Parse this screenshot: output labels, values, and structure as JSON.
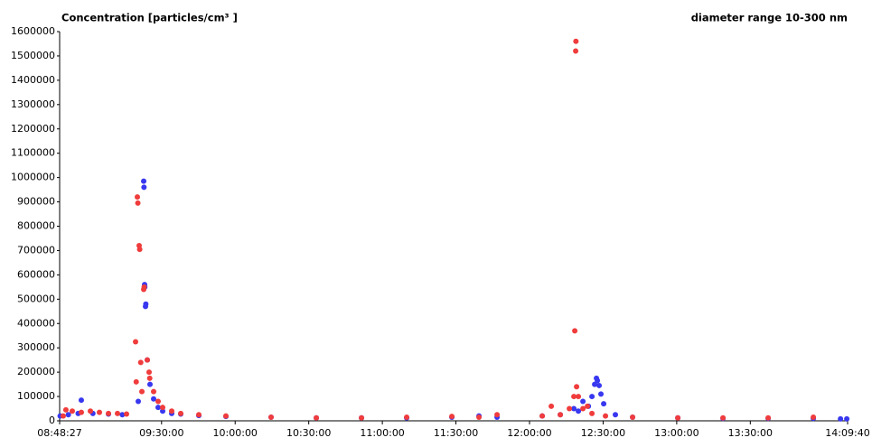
{
  "chart_data": {
    "type": "scatter",
    "title": "Concentration [particles/cm³ ]",
    "subtitle": "diameter range 10-300 nm",
    "xlim": [
      "08:48:27",
      "14:09:40"
    ],
    "xticks": [
      "08:48:27",
      "09:30:00",
      "10:00:00",
      "10:30:00",
      "11:00:00",
      "11:30:00",
      "12:00:00",
      "12:30:00",
      "13:00:00",
      "13:30:00",
      "14:09:40"
    ],
    "ylim": [
      0,
      1600000
    ],
    "yticks": [
      0,
      100000,
      200000,
      300000,
      400000,
      500000,
      600000,
      700000,
      800000,
      900000,
      1000000,
      1100000,
      1200000,
      1300000,
      1400000,
      1500000,
      1600000
    ],
    "grid": false,
    "series": [
      {
        "color": "#3838f0",
        "x": [
          "08:48:40",
          "08:52:00",
          "08:56:00",
          "08:57:17",
          "09:02:00",
          "09:08:21",
          "09:14:00",
          "09:20:30",
          "09:22:43",
          "09:22:50",
          "09:23:05",
          "09:23:10",
          "09:23:27",
          "09:23:35",
          "09:24:11",
          "09:25:17",
          "09:26:46",
          "09:28:36",
          "09:30:27",
          "09:34:08",
          "09:37:49",
          "09:45:11",
          "09:56:14",
          "10:14:39",
          "10:33:05",
          "10:51:30",
          "11:09:55",
          "11:28:20",
          "11:39:24",
          "11:46:46",
          "12:05:11",
          "12:12:33",
          "12:18:05",
          "12:19:55",
          "12:21:46",
          "12:24:00",
          "12:25:27",
          "12:26:33",
          "12:27:17",
          "12:27:40",
          "12:28:23",
          "12:29:07",
          "12:30:14",
          "12:35:00",
          "12:42:01",
          "13:00:27",
          "13:18:52",
          "13:37:17",
          "13:55:42",
          "14:06:46",
          "14:09:20"
        ],
        "values": [
          20000,
          25000,
          30000,
          85000,
          30000,
          28000,
          25000,
          80000,
          985000,
          960000,
          560000,
          550000,
          470000,
          480000,
          250000,
          150000,
          90000,
          55000,
          40000,
          30000,
          28000,
          22000,
          18000,
          15000,
          12000,
          12000,
          12000,
          15000,
          20000,
          15000,
          20000,
          25000,
          50000,
          40000,
          80000,
          60000,
          100000,
          150000,
          175000,
          165000,
          145000,
          110000,
          70000,
          25000,
          15000,
          12000,
          10000,
          10000,
          10000,
          8000,
          8000
        ]
      },
      {
        "color": "#f03c3c",
        "x": [
          "08:49:55",
          "08:51:00",
          "08:53:36",
          "08:57:17",
          "09:00:59",
          "09:04:40",
          "09:08:21",
          "09:12:02",
          "09:15:43",
          "09:19:24",
          "09:19:40",
          "09:20:08",
          "09:20:20",
          "09:20:52",
          "09:21:05",
          "09:21:30",
          "09:21:59",
          "09:22:43",
          "09:22:55",
          "09:24:11",
          "09:24:55",
          "09:25:10",
          "09:26:46",
          "09:28:36",
          "09:30:27",
          "09:34:08",
          "09:37:49",
          "09:45:11",
          "09:56:14",
          "10:14:39",
          "10:33:05",
          "10:51:30",
          "11:09:55",
          "11:28:20",
          "11:39:24",
          "11:46:46",
          "12:05:11",
          "12:08:52",
          "12:12:33",
          "12:16:14",
          "12:18:05",
          "12:18:27",
          "12:18:49",
          "12:18:55",
          "12:19:11",
          "12:19:55",
          "12:21:46",
          "12:23:36",
          "12:25:27",
          "12:30:58",
          "12:42:01",
          "13:00:27",
          "13:18:52",
          "13:37:17",
          "13:55:42"
        ],
        "values": [
          20000,
          45000,
          40000,
          35000,
          40000,
          35000,
          30000,
          30000,
          28000,
          325000,
          160000,
          920000,
          895000,
          720000,
          705000,
          240000,
          120000,
          540000,
          550000,
          250000,
          200000,
          175000,
          120000,
          80000,
          55000,
          40000,
          30000,
          25000,
          20000,
          15000,
          12000,
          12000,
          15000,
          18000,
          15000,
          25000,
          20000,
          60000,
          25000,
          50000,
          100000,
          370000,
          1520000,
          1560000,
          140000,
          100000,
          50000,
          60000,
          30000,
          20000,
          15000,
          12000,
          12000,
          12000,
          15000
        ]
      }
    ]
  }
}
